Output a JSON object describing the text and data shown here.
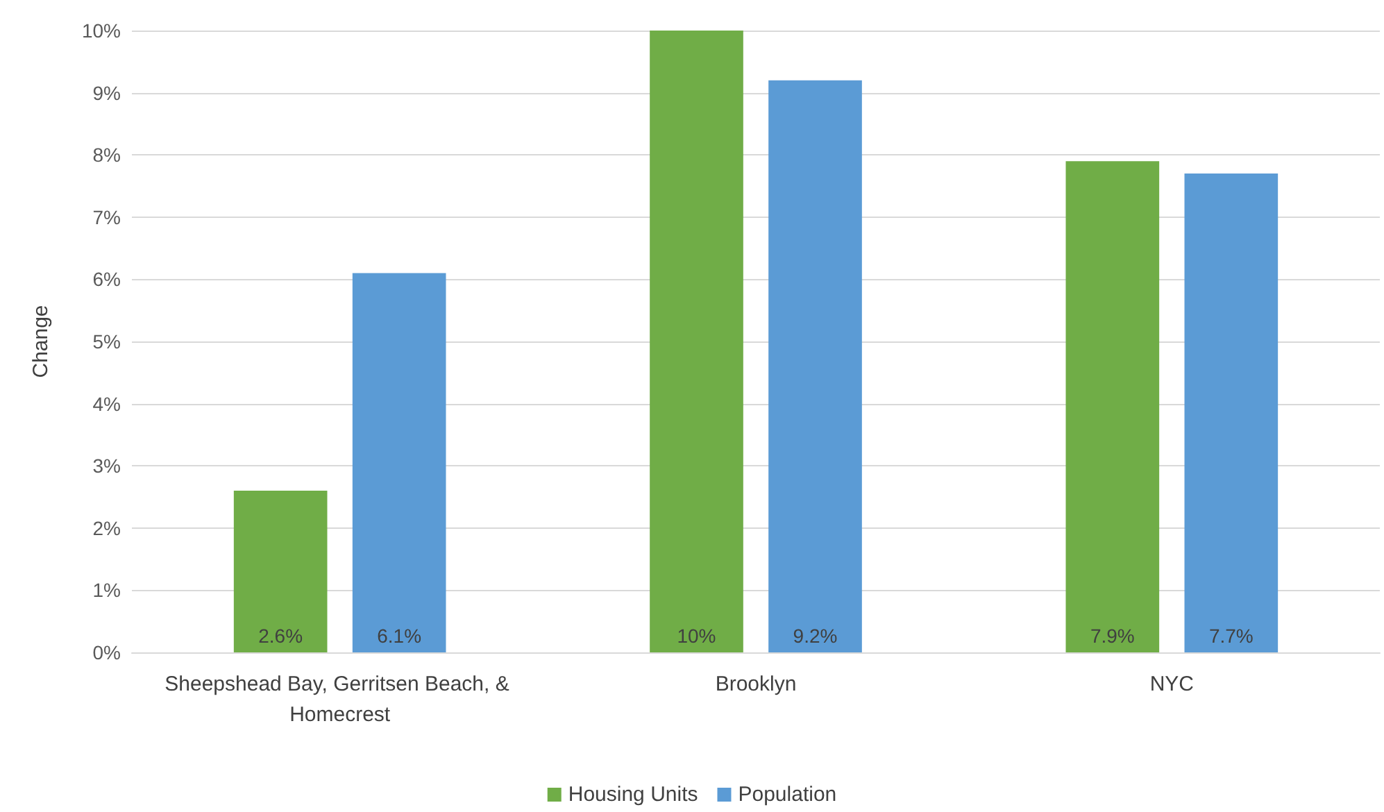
{
  "chart_data": {
    "type": "bar",
    "ylabel": "Change",
    "categories": [
      "Sheepshead Bay, Gerritsen Beach, & Homecrest",
      "Brooklyn",
      "NYC"
    ],
    "series": [
      {
        "name": "Housing Units",
        "color": "#70ad47",
        "values": [
          2.6,
          10,
          7.9
        ],
        "value_labels": [
          "2.6%",
          "10%",
          "7.9%"
        ]
      },
      {
        "name": "Population",
        "color": "#5b9bd5",
        "values": [
          6.1,
          9.2,
          7.7
        ],
        "value_labels": [
          "6.1%",
          "9.2%",
          "7.7%"
        ]
      }
    ],
    "ylim": [
      0,
      10
    ],
    "yticks": [
      {
        "value": 0,
        "label": "0%"
      },
      {
        "value": 1,
        "label": "1%"
      },
      {
        "value": 2,
        "label": "2%"
      },
      {
        "value": 3,
        "label": "3%"
      },
      {
        "value": 4,
        "label": "4%"
      },
      {
        "value": 5,
        "label": "5%"
      },
      {
        "value": 6,
        "label": "6%"
      },
      {
        "value": 7,
        "label": "7%"
      },
      {
        "value": 8,
        "label": "8%"
      },
      {
        "value": 9,
        "label": "9%"
      },
      {
        "value": 10,
        "label": "10%"
      }
    ],
    "grid": "y",
    "legend": "bottom"
  }
}
